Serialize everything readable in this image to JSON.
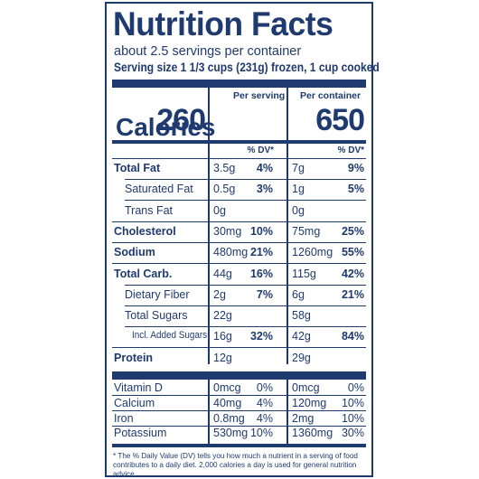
{
  "label": {
    "title": "Nutrition Facts",
    "servings_per_container": "about 2.5 servings per container",
    "serving_size": "Serving size 1 1/3 cups (231g) frozen, 1 cup cooked",
    "col_per_serving": "Per serving",
    "col_per_container": "Per container",
    "calories_label": "Calories",
    "calories_serving": "260",
    "calories_container": "650",
    "dv_header": "% DV*",
    "nutrients": [
      {
        "name": "Total Fat",
        "bold": true,
        "indent": 0,
        "serving_amt": "3.5g",
        "serving_dv": "4%",
        "container_amt": "7g",
        "container_dv": "9%"
      },
      {
        "name": "Saturated Fat",
        "bold": false,
        "indent": 1,
        "serving_amt": "0.5g",
        "serving_dv": "3%",
        "container_amt": "1g",
        "container_dv": "5%"
      },
      {
        "name": "Trans Fat",
        "bold": false,
        "indent": 1,
        "serving_amt": "0g",
        "serving_dv": "",
        "container_amt": "0g",
        "container_dv": ""
      },
      {
        "name": "Cholesterol",
        "bold": true,
        "indent": 0,
        "serving_amt": "30mg",
        "serving_dv": "10%",
        "container_amt": "75mg",
        "container_dv": "25%"
      },
      {
        "name": "Sodium",
        "bold": true,
        "indent": 0,
        "serving_amt": "480mg",
        "serving_dv": "21%",
        "container_amt": "1260mg",
        "container_dv": "55%"
      },
      {
        "name": "Total Carb.",
        "bold": true,
        "indent": 0,
        "serving_amt": "44g",
        "serving_dv": "16%",
        "container_amt": "115g",
        "container_dv": "42%"
      },
      {
        "name": "Dietary Fiber",
        "bold": false,
        "indent": 1,
        "serving_amt": "2g",
        "serving_dv": "7%",
        "container_amt": "6g",
        "container_dv": "21%"
      },
      {
        "name": "Total Sugars",
        "bold": false,
        "indent": 1,
        "serving_amt": "22g",
        "serving_dv": "",
        "container_amt": "58g",
        "container_dv": ""
      },
      {
        "name": "Incl. Added Sugars",
        "bold": false,
        "indent": 2,
        "serving_amt": "16g",
        "serving_dv": "32%",
        "container_amt": "42g",
        "container_dv": "84%"
      },
      {
        "name": "Protein",
        "bold": true,
        "indent": 0,
        "serving_amt": "12g",
        "serving_dv": "",
        "container_amt": "29g",
        "container_dv": ""
      }
    ],
    "vitamins": [
      {
        "name": "Vitamin D",
        "serving_amt": "0mcg",
        "serving_dv": "0%",
        "container_amt": "0mcg",
        "container_dv": "0%"
      },
      {
        "name": "Calcium",
        "serving_amt": "40mg",
        "serving_dv": "4%",
        "container_amt": "120mg",
        "container_dv": "10%"
      },
      {
        "name": "Iron",
        "serving_amt": "0.8mg",
        "serving_dv": "4%",
        "container_amt": "2mg",
        "container_dv": "10%"
      },
      {
        "name": "Potassium",
        "serving_amt": "530mg",
        "serving_dv": "10%",
        "container_amt": "1360mg",
        "container_dv": "30%"
      }
    ],
    "footnote": "* The % Daily Value (DV) tells you how much a nutrient in a serving of food contributes to a daily diet. 2,000 calories a day is used for general nutrition advice."
  },
  "colors": {
    "ink": "#1f3a6e",
    "background": "#ffffff"
  }
}
